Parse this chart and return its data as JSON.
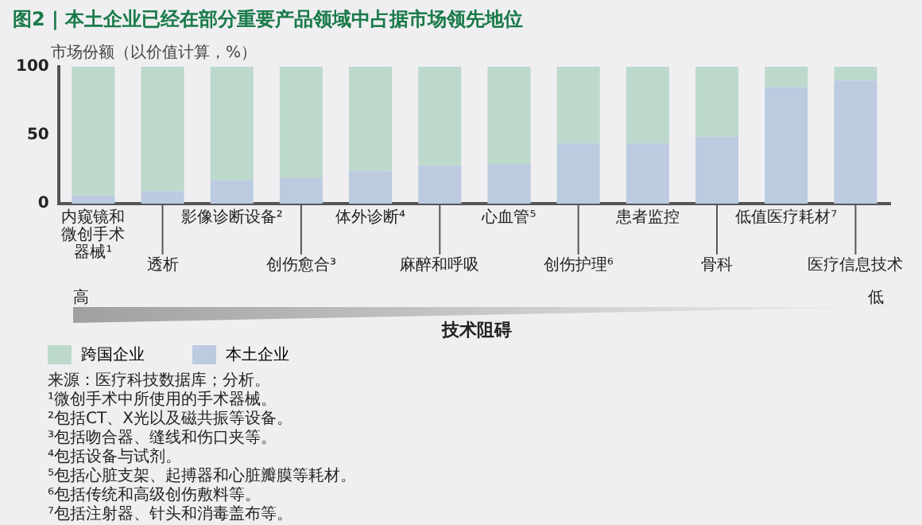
{
  "chart_data": {
    "type": "bar",
    "title": "图2 | 本土企业已经在部分重要产品领域中占据市场领先地位",
    "ylabel": "市场份额（以价值计算，%）",
    "categories": [
      "内窥镜和微创手术器械¹",
      "透析",
      "影像诊断设备²",
      "创伤愈合³",
      "体外诊断⁴",
      "麻醉和呼吸",
      "心血管⁵",
      "创伤护理⁶",
      "患者监控",
      "骨科",
      "低值医疗耗材⁷",
      "医疗信息技术"
    ],
    "stacked": true,
    "series": [
      {
        "name": "本土企业",
        "color": "#bccbe0",
        "values": [
          6,
          9,
          17,
          19,
          24,
          28,
          29,
          44,
          44,
          49,
          85,
          90
        ]
      },
      {
        "name": "跨国企业",
        "color": "#bcd9cb",
        "values": [
          94,
          91,
          83,
          81,
          76,
          72,
          71,
          56,
          56,
          51,
          15,
          10
        ]
      }
    ],
    "ylim": [
      0,
      100
    ],
    "yticks": [
      0,
      50,
      100
    ],
    "grid": false,
    "legend": "bottom left",
    "annotations": [
      "高",
      "低",
      "技术阻碍",
      "来源：医疗科技数据库；分析。",
      "¹微创手术中所使用的手术器械。",
      "²包括CT、X光以及磁共振等设备。",
      "³包括吻合器、缝线和伤口夹等。",
      "⁴包括设备与试剂。",
      "⁵包括心脏支架、起搏器和心脏瓣膜等耗材。",
      "⁶包括传统和高级创伤敷料等。",
      "⁷包括注射器、针头和消毒盖布等。"
    ]
  }
}
